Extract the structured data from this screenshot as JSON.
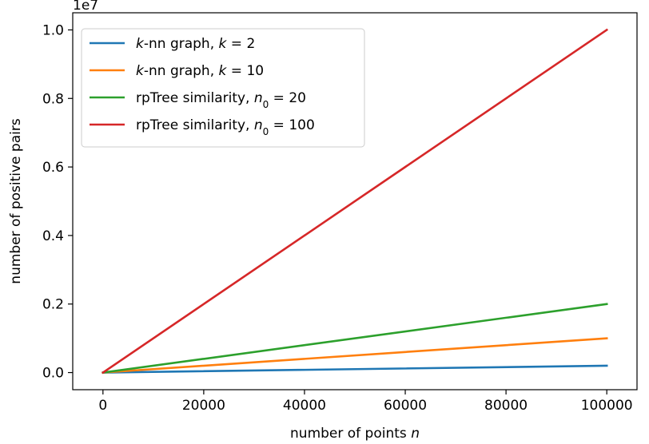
{
  "chart_data": {
    "type": "line",
    "title": "",
    "xlabel": "number of points n",
    "xlabel_main": "number of points ",
    "xlabel_var": "n",
    "ylabel": "number of positive pairs",
    "y_offset_label": "1e7",
    "xlim": [
      -6000,
      106000
    ],
    "ylim": [
      -500000,
      10500000
    ],
    "x_ticks": [
      0,
      20000,
      40000,
      60000,
      80000,
      100000
    ],
    "x_tick_labels": [
      "0",
      "20000",
      "40000",
      "60000",
      "80000",
      "100000"
    ],
    "y_ticks": [
      0,
      2000000,
      4000000,
      6000000,
      8000000,
      10000000
    ],
    "y_tick_labels": [
      "0.0",
      "0.2",
      "0.4",
      "0.6",
      "0.8",
      "1.0"
    ],
    "grid": false,
    "legend_position": "top-left",
    "x": [
      0,
      100000
    ],
    "series": [
      {
        "name": "k-nn graph, k = 2",
        "label_parts": {
          "italic1": "k",
          "plain1": "-nn graph, ",
          "italic2": "k",
          "sub": "",
          "plain2": " = 2"
        },
        "color": "#1f77b4",
        "values": [
          0,
          200000
        ]
      },
      {
        "name": "k-nn graph, k = 10",
        "label_parts": {
          "italic1": "k",
          "plain1": "-nn graph, ",
          "italic2": "k",
          "sub": "",
          "plain2": " = 10"
        },
        "color": "#ff7f0e",
        "values": [
          0,
          1000000
        ]
      },
      {
        "name": "rpTree similarity, n0 = 20",
        "label_parts": {
          "italic1": "",
          "plain1": "rpTree similarity, ",
          "italic2": "n",
          "sub": "0",
          "plain2": " = 20"
        },
        "color": "#2ca02c",
        "values": [
          0,
          2000000
        ]
      },
      {
        "name": "rpTree similarity, n0 = 100",
        "label_parts": {
          "italic1": "",
          "plain1": "rpTree similarity, ",
          "italic2": "n",
          "sub": "0",
          "plain2": " = 100"
        },
        "color": "#d62728",
        "values": [
          0,
          10000000
        ]
      }
    ]
  }
}
